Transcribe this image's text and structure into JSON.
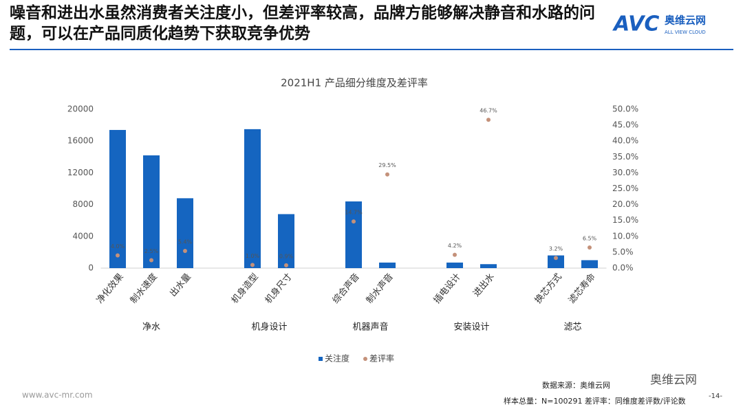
{
  "header": {
    "title": "噪音和进出水虽然消费者关注度小，但差评率较高，品牌方能够解决静音和水路的问题，可以在产品同质化趋势下获取竞争优势",
    "logo": "AVC",
    "logo_cn": "奥维云网",
    "logo_en": "ALL VIEW CLOUD"
  },
  "chart_data": {
    "type": "bar",
    "title": "2021H1  产品细分维度及差评率",
    "groups": [
      {
        "name": "净水",
        "categories": [
          "净化效果",
          "制水速度",
          "出水量"
        ]
      },
      {
        "name": "机身设计",
        "categories": [
          "机身造型",
          "机身尺寸"
        ]
      },
      {
        "name": "机器声音",
        "categories": [
          "综合声音",
          "制水声音"
        ]
      },
      {
        "name": "安装设计",
        "categories": [
          "插电设计",
          "进出水"
        ]
      },
      {
        "name": "滤芯",
        "categories": [
          "换芯方式",
          "滤芯寿命"
        ]
      }
    ],
    "series": [
      {
        "name": "关注度",
        "color": "#1565c0",
        "values": [
          17400,
          14200,
          8800,
          17500,
          6800,
          8400,
          700,
          700,
          500,
          1600,
          1000
        ]
      },
      {
        "name": "差评率",
        "color": "#c4917a",
        "axis": "y2",
        "type": "scatter",
        "values": [
          4.0,
          2.5,
          5.4,
          1.0,
          0.9,
          14.7,
          29.5,
          4.2,
          46.7,
          3.2,
          6.5
        ],
        "value_labels": [
          "4.0%",
          "2.5%",
          "5.4%",
          "1.0%",
          "0.9%",
          "14.7%",
          "29.5%",
          "4.2%",
          "46.7%",
          "3.2%",
          "6.5%"
        ]
      }
    ],
    "ylim": [
      0,
      20000
    ],
    "yticks": [
      0,
      4000,
      8000,
      12000,
      16000,
      20000
    ],
    "y2lim": [
      0,
      50
    ],
    "y2ticks": [
      {
        "value": 0,
        "label": "0.0%"
      },
      {
        "value": 5,
        "label": "5.0%"
      },
      {
        "value": 10,
        "label": "10.0%"
      },
      {
        "value": 15,
        "label": "15.0%"
      },
      {
        "value": 20,
        "label": "20.0%"
      },
      {
        "value": 25,
        "label": "25.0%"
      },
      {
        "value": 30,
        "label": "30.0%"
      },
      {
        "value": 35,
        "label": "35.0%"
      },
      {
        "value": 40,
        "label": "40.0%"
      },
      {
        "value": 45,
        "label": "45.0%"
      },
      {
        "value": 50,
        "label": "50.0%"
      }
    ],
    "legend": "bottom"
  },
  "footer": {
    "website": "www.avc-mr.com",
    "source": "数据来源：奥维云网",
    "note": "样本总量：N=100291 差评率：同维度差评数/评论数",
    "page": "-14-",
    "wechat": "奥维云网"
  }
}
